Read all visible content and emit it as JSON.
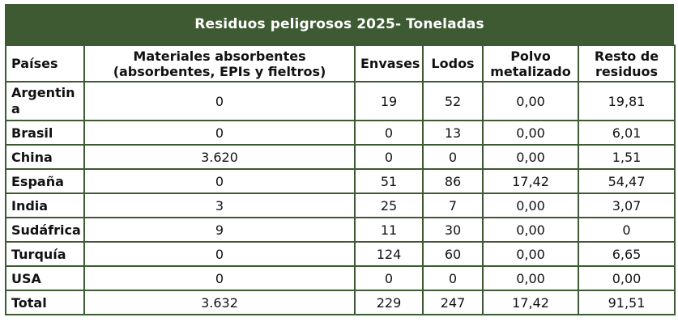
{
  "title": "Residuos peligrosos 2025- Toneladas",
  "columns": [
    "Países",
    "Materiales absorbentes\n(absorbentes, EPIs y fieltros)",
    "Envases",
    "Lodos",
    "Polvo\nmetalizado",
    "Resto de\nresiduos"
  ],
  "rows": [
    {
      "country": "Argentina",
      "absorbentes": "0",
      "envases": "19",
      "lodos": "52",
      "polvo": "0,00",
      "resto": "19,81"
    },
    {
      "country": "Brasil",
      "absorbentes": "0",
      "envases": "0",
      "lodos": "13",
      "polvo": "0,00",
      "resto": "6,01"
    },
    {
      "country": "China",
      "absorbentes": "3.620",
      "envases": "0",
      "lodos": "0",
      "polvo": "0,00",
      "resto": "1,51"
    },
    {
      "country": "España",
      "absorbentes": "0",
      "envases": "51",
      "lodos": "86",
      "polvo": "17,42",
      "resto": "54,47"
    },
    {
      "country": "India",
      "absorbentes": "3",
      "envases": "25",
      "lodos": "7",
      "polvo": "0,00",
      "resto": "3,07"
    },
    {
      "country": "Sudáfrica",
      "absorbentes": "9",
      "envases": "11",
      "lodos": "30",
      "polvo": "0,00",
      "resto": "0"
    },
    {
      "country": "Turquía",
      "absorbentes": "0",
      "envases": "124",
      "lodos": "60",
      "polvo": "0,00",
      "resto": "6,65"
    },
    {
      "country": "USA",
      "absorbentes": "0",
      "envases": "0",
      "lodos": "0",
      "polvo": "0,00",
      "resto": "0,00"
    }
  ],
  "total": {
    "label": "Total",
    "absorbentes": "3.632",
    "envases": "229",
    "lodos": "247",
    "polvo": "17,42",
    "resto": "91,51"
  },
  "colors": {
    "header_bg": "#3d5a32",
    "border": "#3d5a32"
  }
}
